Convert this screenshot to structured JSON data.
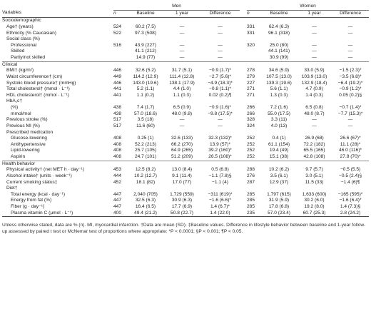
{
  "headers": {
    "men": "Men",
    "women": "Women",
    "variables": "Variables",
    "n": "n",
    "baseline": "Baseline",
    "one_year": "1 year",
    "difference": "Difference"
  },
  "rows": [
    {
      "type": "section",
      "label": "Sociodemographic"
    },
    {
      "label": "Age† (years)",
      "indent": 1,
      "men": [
        "524",
        "60.2 (7.5)",
        "—",
        "—"
      ],
      "women": [
        "331",
        "62.4 (6.3)",
        "—",
        "—"
      ]
    },
    {
      "label": "Ethnicity (% Caucasian)",
      "indent": 1,
      "men": [
        "522",
        "97.3 (508)",
        "—",
        "—"
      ],
      "women": [
        "331",
        "96.1 (318)",
        "—",
        "—"
      ]
    },
    {
      "label": "Social class (%)",
      "indent": 1,
      "men": [
        "",
        "",
        "",
        ""
      ],
      "women": [
        "",
        "",
        "",
        ""
      ]
    },
    {
      "label": "Professional",
      "indent": 2,
      "men": [
        "516",
        "43.9 (227)",
        "—",
        "—"
      ],
      "women": [
        "320",
        "25.0 (80)",
        "—",
        "—"
      ]
    },
    {
      "label": "Skilled",
      "indent": 2,
      "men": [
        "",
        "41.1 (212)",
        "—",
        "—"
      ],
      "women": [
        "",
        "44.1 (141)",
        "—",
        "—"
      ]
    },
    {
      "label": "Partly/not skilled",
      "indent": 2,
      "men": [
        "",
        "14.9 (77)",
        "—",
        "—"
      ],
      "women": [
        "",
        "30.9 (99)",
        "—",
        "—"
      ]
    },
    {
      "type": "section",
      "label": "Clinical"
    },
    {
      "label": "BMI† (kg/m²)",
      "indent": 1,
      "men": [
        "446",
        "32.6 (5.2)",
        "31.7 (5.1)",
        "−0.9 (1.7)*"
      ],
      "women": [
        "278",
        "34.6 (5.9)",
        "33.0 (5.9)",
        "−1.5 (2.3)*"
      ]
    },
    {
      "label": "Waist circumference† (cm)",
      "indent": 1,
      "men": [
        "449",
        "114.2 (12.9)",
        "111.4 (12.8)",
        "−2.7 (5.6)*"
      ],
      "women": [
        "279",
        "107.5 (13.0)",
        "103.9 (13.0)",
        "−3.5 (6.8)*"
      ]
    },
    {
      "label": "Systolic blood pressure† (mmHg)",
      "indent": 1,
      "men": [
        "446",
        "143.0 (19.6)",
        "138.1 (17.9)",
        "−4.9 (18.3)*"
      ],
      "women": [
        "227",
        "139.3 (19.6)",
        "132.9 (18.4)",
        "−6.4 (19.2)*"
      ]
    },
    {
      "label": "Total cholesterol† (mmol · L⁻¹)",
      "indent": 1,
      "men": [
        "441",
        "5.2 (1.1)",
        "4.4 (1.0)",
        "−0.8 (1.1)*"
      ],
      "women": [
        "271",
        "5.6 (1.1)",
        "4.7 (0.9)",
        "−0.9 (1.2)*"
      ]
    },
    {
      "label": "HDL cholesterol† (mmol · L⁻¹)",
      "indent": 1,
      "men": [
        "441",
        "1.1 (0.2)",
        "1.1 (0.3)",
        "0.02 (0.2)¶"
      ],
      "women": [
        "271",
        "1.3 (0.3)",
        "1.4 (0.3)",
        "0.05 (0.2)§"
      ]
    },
    {
      "label": "HbA₁c†",
      "indent": 1,
      "men": [
        "",
        "",
        "",
        ""
      ],
      "women": [
        "",
        "",
        "",
        ""
      ]
    },
    {
      "label": "(%)",
      "indent": 2,
      "men": [
        "438",
        "7.4 (1.7)",
        "6.5 (0.9)",
        "−0.9 (1.6)*"
      ],
      "women": [
        "266",
        "7.2 (1.6)",
        "6.5 (0.8)",
        "−0.7 (1.4)*"
      ]
    },
    {
      "label": "mmol/mol",
      "indent": 2,
      "men": [
        "438",
        "57.0 (18.6)",
        "48.0 (9.8)",
        "−9.8 (17.5)*"
      ],
      "women": [
        "266",
        "55.0 (17.5)",
        "48.0 (8.7)",
        "−7.7 (15.3)*"
      ]
    },
    {
      "label": "Previous stroke (%)",
      "indent": 1,
      "men": [
        "517",
        "3.5 (18)",
        "—",
        "—"
      ],
      "women": [
        "328",
        "3.3 (11)",
        "—",
        "—"
      ]
    },
    {
      "label": "Previous MI (%)",
      "indent": 1,
      "men": [
        "517",
        "11.6 (60)",
        "—",
        "—"
      ],
      "women": [
        "324",
        "4.0 (13)",
        "—",
        "—"
      ]
    },
    {
      "label": "Prescribed medication",
      "indent": 1,
      "men": [
        "",
        "",
        "",
        ""
      ],
      "women": [
        "",
        "",
        "",
        ""
      ]
    },
    {
      "label": "Glucose-lowering",
      "indent": 2,
      "men": [
        "408",
        "0.25 (1)",
        "32.6 (133)",
        "32.3 (132)*"
      ],
      "women": [
        "252",
        "0.4 (1)",
        "26.9 (68)",
        "26.6 (67)*"
      ]
    },
    {
      "label": "Antihypertensive",
      "indent": 2,
      "men": [
        "408",
        "52.2 (213)",
        "66.2 (270)",
        "13.9 (57)*"
      ],
      "women": [
        "252",
        "61.1 (154)",
        "72.2 (182)",
        "11.1 (28)*"
      ]
    },
    {
      "label": "Lipid-lowering",
      "indent": 2,
      "men": [
        "408",
        "25.7 (105)",
        "64.9 (265)",
        "39.2 (160)*"
      ],
      "women": [
        "252",
        "19.4 (49)",
        "65.5 (165)",
        "46.0 (116)*"
      ]
    },
    {
      "label": "Aspirin",
      "indent": 2,
      "men": [
        "408",
        "24.7 (101)",
        "51.2 (209)",
        "26.5 (108)*"
      ],
      "women": [
        "252",
        "15.1 (38)",
        "42.8 (108)",
        "27.8 (70)*"
      ]
    },
    {
      "type": "section",
      "label": "Health behavior"
    },
    {
      "label": "Physical activity† (net MET h · day⁻¹)",
      "indent": 1,
      "men": [
        "453",
        "12.5 (8.2)",
        "13.0 (8.4)",
        "0.5 (6.8)"
      ],
      "women": [
        "288",
        "10.2 (6.2)",
        "9.7 (5.7)",
        "−0.5 (5.5)"
      ]
    },
    {
      "label": "Alcohol intake† (units · week⁻¹)",
      "indent": 1,
      "men": [
        "444",
        "10.2 (12.7)",
        "9.1 (11.4)",
        "−1.1 (7.8)§"
      ],
      "women": [
        "276",
        "3.5 (6.1)",
        "3.0 (5.1)",
        "−0.5 (2.4)§"
      ]
    },
    {
      "label": "Current smoking status‡",
      "indent": 1,
      "men": [
        "452",
        "18.1 (82)",
        "17.0 (77)",
        "−1.1 (4)"
      ],
      "women": [
        "287",
        "12.9 (37)",
        "11.5 (33)",
        "−1.4 (6)¶"
      ]
    },
    {
      "label": "Diet†",
      "indent": 1,
      "men": [
        "",
        "",
        "",
        ""
      ],
      "women": [
        "",
        "",
        "",
        ""
      ]
    },
    {
      "label": "Total energy (kcal · day⁻¹)",
      "indent": 2,
      "men": [
        "447",
        "2,040 (705)",
        "1,729 (559)",
        "−311 (619)*"
      ],
      "women": [
        "285",
        "1,797 (615)",
        "1,633 (600)",
        "−165 (595)*"
      ]
    },
    {
      "label": "Energy from fat (%)",
      "indent": 2,
      "men": [
        "447",
        "32.5 (6.3)",
        "30.9 (6.3)",
        "−1.6 (6.6)*"
      ],
      "women": [
        "285",
        "31.9 (5.9)",
        "30.2 (6.0)",
        "−1.6 (6.4)*"
      ]
    },
    {
      "label": "Fiber (g · day⁻¹)",
      "indent": 2,
      "men": [
        "447",
        "16.4 (6.5)",
        "17.7 (6.9)",
        "1.4 (6.7)*"
      ],
      "women": [
        "285",
        "17.8 (6.8)",
        "19.2 (8.0)",
        "1.4 (7.3)§"
      ]
    },
    {
      "label": "Plasma vitamin C (μmol · L⁻¹)",
      "indent": 2,
      "men": [
        "400",
        "49.4 (21.2)",
        "50.8 (22.7)",
        "1.4 (22.0)"
      ],
      "women": [
        "235",
        "57.0 (23.4)",
        "60.7 (25.3)",
        "2.8 (24.2)"
      ]
    }
  ],
  "footnote": "Unless otherwise stated, data are % (n). MI, myocardial infarction. †Data are mean (SD). ‡Baseline values. Difference in lifestyle behavior between baseline and 1-year follow-up assessed by paired t test or McNemar test of proportions where appropriate: *P < 0.0001; §P < 0.001; ¶P < 0.05."
}
